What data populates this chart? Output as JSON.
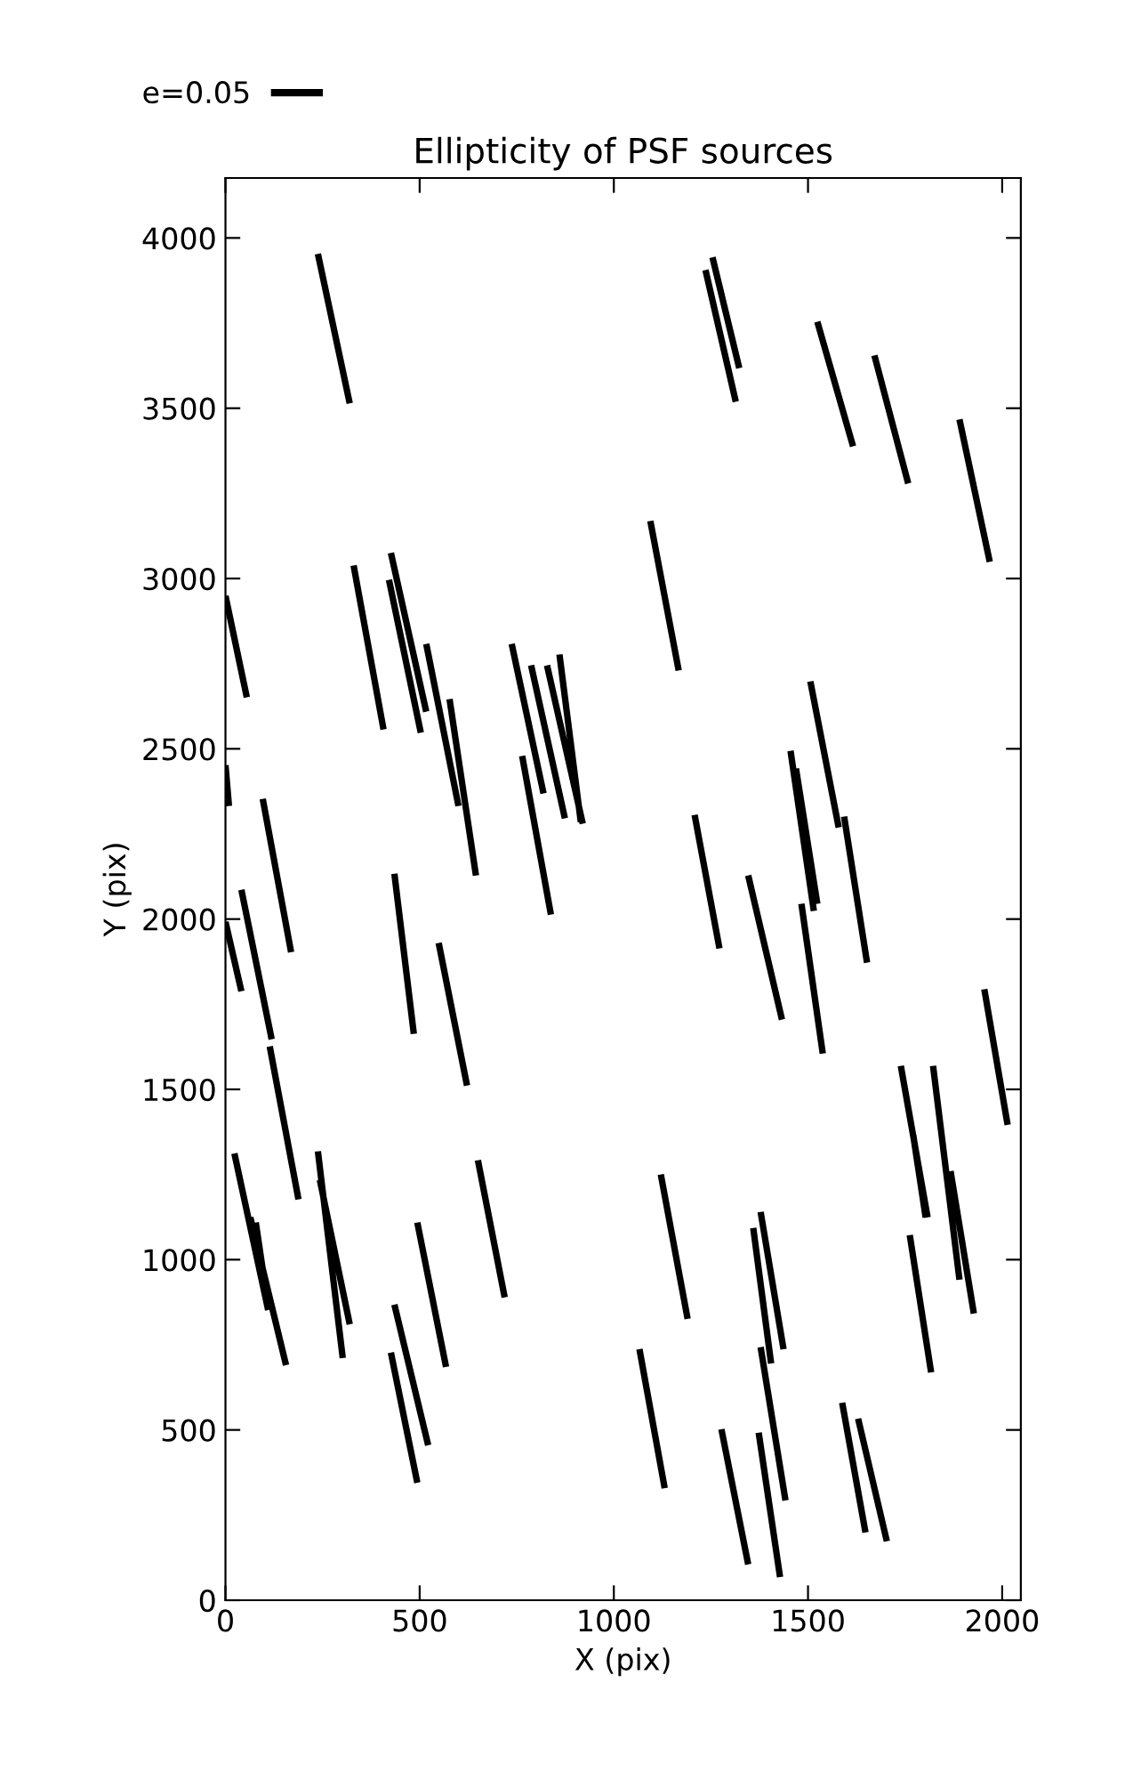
{
  "chart_data": {
    "type": "line",
    "title": "Ellipticity of PSF sources",
    "xlabel": "X (pix)",
    "ylabel": "Y (pix)",
    "xlim": [
      0,
      2048
    ],
    "ylim": [
      0,
      4176
    ],
    "xticks": [
      0,
      500,
      1000,
      1500,
      2000
    ],
    "yticks": [
      0,
      500,
      1000,
      1500,
      2000,
      2500,
      3000,
      3500,
      4000
    ],
    "grid": false,
    "legend": "top left",
    "marker": "none",
    "line_style": "solid",
    "series": [
      {
        "name": "e=0.05",
        "color": "#000000",
        "x": [
          238,
          320,
          null,
          0,
          55,
          null,
          0,
          9,
          null,
          330,
          407,
          null,
          426,
          517,
          null,
          421,
          503,
          null,
          517,
          600,
          null,
          577,
          645,
          null,
          737,
          819,
          null,
          764,
          838,
          null,
          787,
          874,
          null,
          828,
          920,
          null,
          860,
          915,
          null,
          1094,
          1167,
          null,
          1236,
          1314,
          null,
          1254,
          1323,
          null,
          1524,
          1616,
          null,
          1671,
          1758,
          null,
          1890,
          1968,
          null,
          1506,
          1579,
          null,
          1455,
          1515,
          null,
          1469,
          1524,
          null,
          1208,
          1272,
          null,
          1346,
          1433,
          null,
          1483,
          1538,
          null,
          1593,
          1652,
          null,
          1954,
          2014,
          null,
          0,
          41,
          null,
          41,
          119,
          null,
          96,
          169,
          null,
          114,
          188,
          null,
          435,
          485,
          null,
          549,
          622,
          null,
          23,
          110,
          null,
          64,
          156,
          null,
          78,
          110,
          null,
          238,
          302,
          null,
          243,
          320,
          null,
          435,
          522,
          null,
          426,
          494,
          null,
          494,
          568,
          null,
          650,
          719,
          null,
          1066,
          1131,
          null,
          1121,
          1190,
          null,
          1277,
          1346,
          null,
          1359,
          1405,
          null,
          1378,
          1442,
          null,
          1373,
          1428,
          null,
          1378,
          1437,
          null,
          1588,
          1648,
          null,
          1629,
          1703,
          null,
          1739,
          1808,
          null,
          1771,
          1803,
          null,
          1762,
          1817,
          null,
          1822,
          1890,
          null,
          1867,
          1927
        ],
        "values": [
          3953,
          3514,
          null,
          2949,
          2651,
          null,
          2452,
          2332,
          null,
          3038,
          2557,
          null,
          3075,
          2609,
          null,
          2996,
          2547,
          null,
          2808,
          2332,
          null,
          2646,
          2128,
          null,
          2808,
          2369,
          null,
          2479,
          2013,
          null,
          2745,
          2296,
          null,
          2745,
          2280,
          null,
          2777,
          2285,
          null,
          3169,
          2730,
          null,
          3906,
          3519,
          null,
          3943,
          3618,
          null,
          3754,
          3388,
          null,
          3655,
          3279,
          null,
          3467,
          3049,
          null,
          2698,
          2269,
          null,
          2494,
          2024,
          null,
          2442,
          2045,
          null,
          2306,
          1914,
          null,
          2128,
          1705,
          null,
          2045,
          1605,
          null,
          2301,
          1872,
          null,
          1794,
          1396,
          null,
          1992,
          1788,
          null,
          2086,
          1647,
          null,
          2353,
          1903,
          null,
          1626,
          1177,
          null,
          2133,
          1663,
          null,
          1930,
          1511,
          null,
          1312,
          852,
          null,
          1124,
          690,
          null,
          1109,
          863,
          null,
          1318,
          711,
          null,
          1234,
          810,
          null,
          868,
          455,
          null,
          727,
          345,
          null,
          1109,
          685,
          null,
          1292,
          889,
          null,
          737,
          329,
          null,
          1250,
          826,
          null,
          502,
          105,
          null,
          1093,
          695,
          null,
          743,
          293,
          null,
          492,
          68,
          null,
          1140,
          737,
          null,
          580,
          199,
          null,
          533,
          173,
          null,
          1569,
          1124,
          null,
          1365,
          1124,
          null,
          1072,
          669,
          null,
          1569,
          941,
          null,
          1260,
          842
        ]
      }
    ]
  }
}
